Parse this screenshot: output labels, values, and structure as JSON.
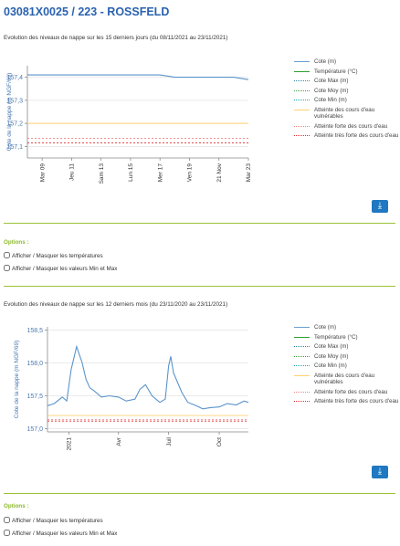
{
  "page_title": "03081X0025 / 223 - ROSSFELD",
  "charts": [
    {
      "title": "Evolution des niveaux de nappe sur les 15 derniers jours (du 08/11/2021 au 23/11/2021)",
      "ylabel": "Cote de la nappe (m NGF/69)",
      "yticks": [
        "157,4",
        "157,3",
        "157,2",
        "157,1"
      ],
      "xticks": [
        "Mar 09",
        "Jeu 11",
        "Sam 13",
        "Lun 15",
        "Mer 17",
        "Ven 19",
        "21 Nov",
        "Mar 23"
      ]
    },
    {
      "title": "Evolution des niveaux de nappe sur les 12 derniers mois (du 23/11/2020 au 23/11/2021)",
      "ylabel": "Cote de la nappe (m NGF/69)",
      "yticks": [
        "158,5",
        "158,0",
        "157,5",
        "157,0"
      ],
      "xticks": [
        "2021",
        "Avr",
        "Juil",
        "Oct"
      ]
    }
  ],
  "legend": [
    {
      "label": "Cote (m)",
      "color": "#6a9fd0",
      "style": "solid"
    },
    {
      "label": "Température (°C)",
      "color": "#2ca02c",
      "style": "solid"
    },
    {
      "label": "Cote Max (m)",
      "color": "#2c8aa3",
      "style": "dotted"
    },
    {
      "label": "Cote Moy (m)",
      "color": "#3aa03a",
      "style": "dotted"
    },
    {
      "label": "Cote Min (m)",
      "color": "#1fa7a7",
      "style": "dotted"
    },
    {
      "label": "Atteinte des cours d'eau vulnérables",
      "color": "#ffd070",
      "style": "solid"
    },
    {
      "label": "Atteinte forte des cours d'eau",
      "color": "#f08080",
      "style": "dotted"
    },
    {
      "label": "Atteinte très forte des cours d'eau",
      "color": "#e03030",
      "style": "dotted"
    }
  ],
  "options": {
    "title": "Options :",
    "toggle_temperatures": "Afficher / Masquer les températures",
    "toggle_minmax": "Afficher / Masquer les valeurs Min et Max"
  },
  "chart_data": [
    {
      "type": "line",
      "title": "Evolution des niveaux de nappe sur les 15 derniers jours (du 08/11/2021 au 23/11/2021)",
      "ylabel": "Cote de la nappe (m NGF/69)",
      "ylim": [
        157.05,
        157.45
      ],
      "x": [
        "2021-11-08",
        "2021-11-09",
        "2021-11-10",
        "2021-11-11",
        "2021-11-12",
        "2021-11-13",
        "2021-11-14",
        "2021-11-15",
        "2021-11-16",
        "2021-11-17",
        "2021-11-18",
        "2021-11-19",
        "2021-11-20",
        "2021-11-21",
        "2021-11-22",
        "2021-11-23"
      ],
      "series": [
        {
          "name": "Cote (m)",
          "values": [
            157.41,
            157.41,
            157.41,
            157.41,
            157.41,
            157.41,
            157.41,
            157.41,
            157.41,
            157.41,
            157.4,
            157.4,
            157.4,
            157.4,
            157.4,
            157.39
          ]
        }
      ],
      "thresholds": [
        {
          "name": "Atteinte des cours d'eau vulnérables",
          "value": 157.2
        },
        {
          "name": "Atteinte forte des cours d'eau",
          "value": 157.135
        },
        {
          "name": "Atteinte très forte des cours d'eau",
          "value": 157.115
        }
      ]
    },
    {
      "type": "line",
      "title": "Evolution des niveaux de nappe sur les 12 derniers mois (du 23/11/2020 au 23/11/2021)",
      "ylabel": "Cote de la nappe (m NGF/69)",
      "ylim": [
        156.95,
        158.55
      ],
      "x": [
        "2020-11-23",
        "2020-12-05",
        "2020-12-20",
        "2020-12-28",
        "2021-01-05",
        "2021-01-15",
        "2021-01-25",
        "2021-02-01",
        "2021-02-08",
        "2021-02-15",
        "2021-03-01",
        "2021-03-15",
        "2021-04-01",
        "2021-04-15",
        "2021-05-01",
        "2021-05-10",
        "2021-05-20",
        "2021-06-01",
        "2021-06-15",
        "2021-06-25",
        "2021-07-01",
        "2021-07-05",
        "2021-07-10",
        "2021-07-15",
        "2021-07-25",
        "2021-08-05",
        "2021-08-20",
        "2021-09-01",
        "2021-09-15",
        "2021-10-01",
        "2021-10-15",
        "2021-11-01",
        "2021-11-15",
        "2021-11-23"
      ],
      "series": [
        {
          "name": "Cote (m)",
          "values": [
            157.35,
            157.38,
            157.48,
            157.42,
            157.9,
            158.25,
            158.0,
            157.75,
            157.62,
            157.58,
            157.48,
            157.5,
            157.48,
            157.42,
            157.45,
            157.6,
            157.67,
            157.5,
            157.4,
            157.45,
            157.95,
            158.1,
            157.85,
            157.75,
            157.55,
            157.4,
            157.35,
            157.3,
            157.32,
            157.33,
            157.38,
            157.36,
            157.42,
            157.4
          ]
        }
      ],
      "thresholds": [
        {
          "name": "Atteinte des cours d'eau vulnérables",
          "value": 157.2
        },
        {
          "name": "Atteinte forte des cours d'eau",
          "value": 157.135
        },
        {
          "name": "Atteinte très forte des cours d'eau",
          "value": 157.115
        }
      ]
    }
  ]
}
